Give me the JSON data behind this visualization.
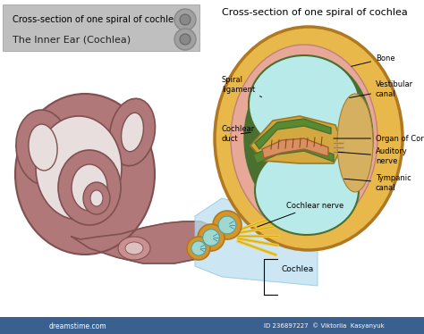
{
  "title_left1": "Cross-section of one spiral of cochlea",
  "title_left2": "The Inner Ear (Cochlea)",
  "title_right": "Cross-section of one spiral of cochlea",
  "bg_color": "#ffffff",
  "outer_bone_color": "#e8b84b",
  "outer_bone_dark": "#b07820",
  "pink_tissue_color": "#e8a898",
  "cyan_fluid_color": "#b8eaea",
  "dark_green_border": "#4a7030",
  "dark_cyan_border": "#50a0a0",
  "green_membrane_color": "#5a8a30",
  "cochlea_fill": "#b07878",
  "cochlea_edge": "#805050",
  "cochlea_inner": "#c89090",
  "nerve_yellow": "#f0c840",
  "small_circles_orange": "#d4952a",
  "small_circles_cyan": "#a0d8d0",
  "bar_blue": "#3a6090"
}
